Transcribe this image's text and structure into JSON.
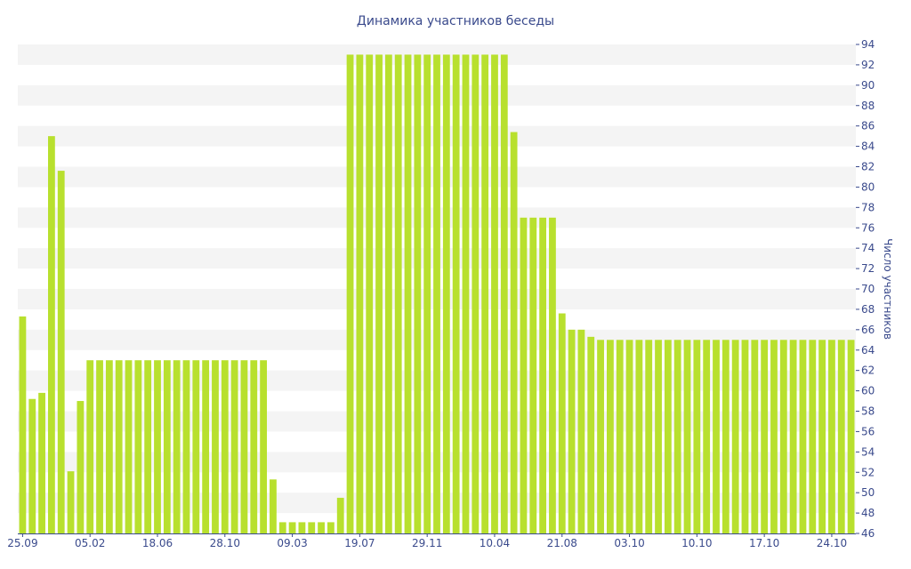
{
  "chart_data": {
    "type": "bar",
    "title": "Динамика участников беседы",
    "ylabel": "Число участников",
    "xlabel": "",
    "ylim": [
      46,
      94
    ],
    "y_ticks": [
      46,
      48,
      50,
      52,
      54,
      56,
      58,
      60,
      62,
      64,
      66,
      68,
      70,
      72,
      74,
      76,
      78,
      80,
      82,
      84,
      86,
      88,
      90,
      92,
      94
    ],
    "x_tick_labels": [
      {
        "index": 0,
        "label": "25.09"
      },
      {
        "index": 7,
        "label": "05.02"
      },
      {
        "index": 14,
        "label": "18.06"
      },
      {
        "index": 21,
        "label": "28.10"
      },
      {
        "index": 28,
        "label": "09.03"
      },
      {
        "index": 35,
        "label": "19.07"
      },
      {
        "index": 42,
        "label": "29.11"
      },
      {
        "index": 49,
        "label": "10.04"
      },
      {
        "index": 56,
        "label": "21.08"
      },
      {
        "index": 63,
        "label": "03.10"
      },
      {
        "index": 70,
        "label": "10.10"
      },
      {
        "index": 77,
        "label": "17.10"
      },
      {
        "index": 84,
        "label": "24.10"
      }
    ],
    "grid": "horizontal bands",
    "bar_color": "#b8e02e",
    "band_color": "#f4f4f4",
    "text_color": "#3a4a8c",
    "values": [
      67.3,
      59.2,
      59.8,
      85,
      81.6,
      52.1,
      59,
      63,
      63,
      63,
      63,
      63,
      63,
      63,
      63,
      63,
      63,
      63,
      63,
      63,
      63,
      63,
      63,
      63,
      63,
      63,
      51.3,
      47.1,
      47.1,
      47.1,
      47.1,
      47.1,
      47.1,
      49.5,
      93,
      93,
      93,
      93,
      93,
      93,
      93,
      93,
      93,
      93,
      93,
      93,
      93,
      93,
      93,
      93,
      93,
      85.4,
      77,
      77,
      77,
      77,
      67.6,
      66,
      66,
      65.3,
      65,
      65,
      65,
      65,
      65,
      65,
      65,
      65,
      65,
      65,
      65,
      65,
      65,
      65,
      65,
      65,
      65,
      65,
      65,
      65,
      65,
      65,
      65,
      65,
      65,
      65,
      65
    ]
  }
}
